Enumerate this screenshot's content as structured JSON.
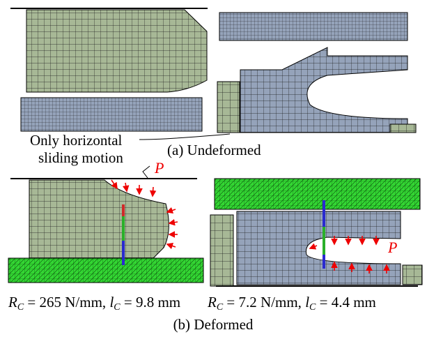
{
  "labels": {
    "note_line1": "Only horizontal",
    "note_line2": "sliding motion",
    "caption_a": "(a) Undeformed",
    "load_left": "P",
    "load_right": "P",
    "caption_b": "(b) Deformed"
  },
  "results": [
    {
      "parts": [
        "R",
        "C",
        " = 265 N/mm, ",
        "l",
        "C",
        " = 9.8 mm"
      ]
    },
    {
      "parts": [
        "R",
        "C",
        " = 7.2 N/mm, ",
        "l",
        "C",
        " = 4.4 mm"
      ]
    }
  ]
}
